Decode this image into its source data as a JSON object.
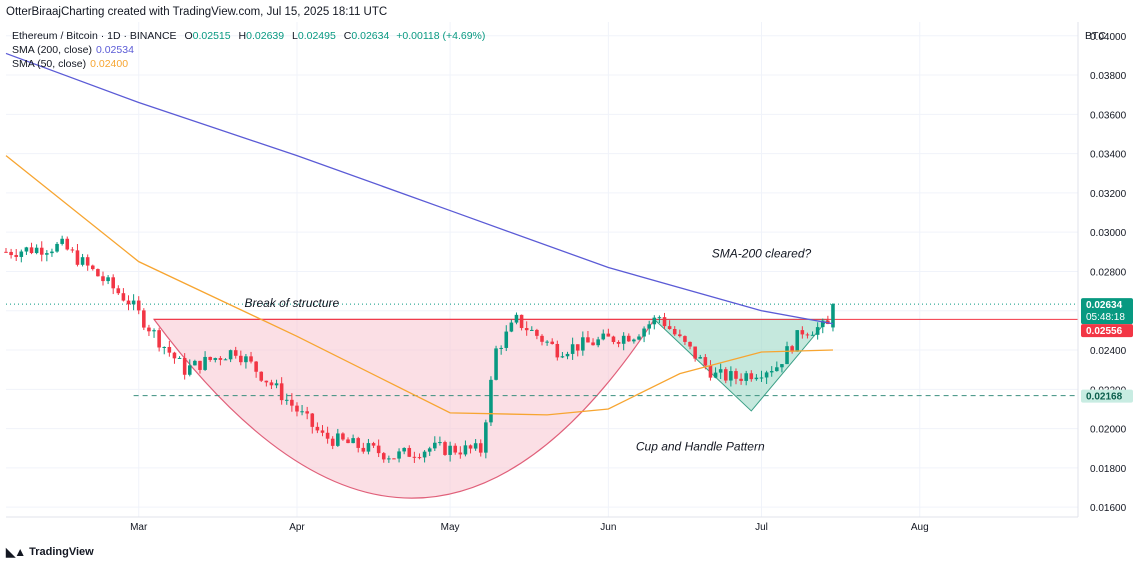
{
  "credit": "OtterBiraajCharting created with TradingView.com, Jul 15, 2025 18:11 UTC",
  "symbol": "Ethereum / Bitcoin · 1D · BINANCE",
  "ohlc": {
    "o_label": "O",
    "o": "0.02515",
    "h_label": "H",
    "h": "0.02639",
    "l_label": "L",
    "l": "0.02495",
    "c_label": "C",
    "c": "0.02634",
    "change": "+0.00118 (+4.69%)"
  },
  "indicators": [
    {
      "label": "SMA (200, close)",
      "value": "0.02534",
      "color": "#5b5bd6"
    },
    {
      "label": "SMA (50, close)",
      "value": "0.02400",
      "color": "#f7a531"
    }
  ],
  "unit": "BTC",
  "watermark": "TradingView",
  "colors": {
    "up": "#089981",
    "down": "#f23645",
    "sma200": "#5b5bd6",
    "sma50": "#f7a531",
    "resistance": "#f23645",
    "support": "#3a8f7e",
    "cup": "#f8c5cf",
    "handle": "#9fd8c6"
  },
  "chart_data": {
    "type": "candlestick",
    "yaxis": {
      "ticks": [
        "0.04000",
        "0.03800",
        "0.03600",
        "0.03400",
        "0.03200",
        "0.03000",
        "0.02800",
        "0.02600",
        "0.02400",
        "0.02200",
        "0.02000",
        "0.01800",
        "0.01600"
      ],
      "range": [
        0.0155,
        0.0407
      ]
    },
    "xaxis": {
      "ticks": [
        {
          "label": "Mar",
          "date": "2025-03-01"
        },
        {
          "label": "Apr",
          "date": "2025-04-01"
        },
        {
          "label": "May",
          "date": "2025-05-01"
        },
        {
          "label": "Jun",
          "date": "2025-06-01"
        },
        {
          "label": "Jul",
          "date": "2025-07-01"
        },
        {
          "label": "Aug",
          "date": "2025-08-01"
        }
      ],
      "range": [
        "2025-02-03",
        "2025-09-01"
      ]
    },
    "price_labels": [
      {
        "value": "0.02634",
        "countdown": "05:48:18",
        "kind": "last"
      },
      {
        "value": "0.02556",
        "kind": "resistance"
      },
      {
        "value": "0.02168",
        "kind": "support"
      }
    ],
    "levels": {
      "break_of_structure": 0.02556,
      "support": 0.02168,
      "last": 0.02634
    },
    "annotations": [
      {
        "text": "Break of structure",
        "date": "2025-03-31",
        "value": 0.0262
      },
      {
        "text": "SMA-200 cleared?",
        "date": "2025-07-01",
        "value": 0.0287
      },
      {
        "text": "Cup and Handle Pattern",
        "date": "2025-06-19",
        "value": 0.01888
      }
    ],
    "keypoints": [
      {
        "date": "2025-02-03",
        "value": 0.029
      },
      {
        "date": "2025-02-14",
        "value": 0.0293
      },
      {
        "date": "2025-02-27",
        "value": 0.0265
      },
      {
        "date": "2025-03-05",
        "value": 0.0245
      },
      {
        "date": "2025-03-10",
        "value": 0.023
      },
      {
        "date": "2025-03-20",
        "value": 0.024
      },
      {
        "date": "2025-03-28",
        "value": 0.022
      },
      {
        "date": "2025-04-06",
        "value": 0.0196
      },
      {
        "date": "2025-04-20",
        "value": 0.0186
      },
      {
        "date": "2025-04-27",
        "value": 0.019
      },
      {
        "date": "2025-05-07",
        "value": 0.0189
      },
      {
        "date": "2025-05-10",
        "value": 0.024
      },
      {
        "date": "2025-05-14",
        "value": 0.0255
      },
      {
        "date": "2025-05-22",
        "value": 0.024
      },
      {
        "date": "2025-05-31",
        "value": 0.0245
      },
      {
        "date": "2025-06-06",
        "value": 0.0248
      },
      {
        "date": "2025-06-11",
        "value": 0.0257
      },
      {
        "date": "2025-06-15",
        "value": 0.0245
      },
      {
        "date": "2025-06-22",
        "value": 0.0227
      },
      {
        "date": "2025-06-26",
        "value": 0.0226
      },
      {
        "date": "2025-07-04",
        "value": 0.0232
      },
      {
        "date": "2025-07-09",
        "value": 0.025
      },
      {
        "date": "2025-07-14",
        "value": 0.0252
      },
      {
        "date": "2025-07-15",
        "value": 0.02634
      }
    ],
    "sma200": [
      {
        "date": "2025-02-03",
        "value": 0.0391
      },
      {
        "date": "2025-03-01",
        "value": 0.0366
      },
      {
        "date": "2025-04-01",
        "value": 0.0339
      },
      {
        "date": "2025-05-01",
        "value": 0.0311
      },
      {
        "date": "2025-06-01",
        "value": 0.0282
      },
      {
        "date": "2025-07-01",
        "value": 0.026
      },
      {
        "date": "2025-07-15",
        "value": 0.02534
      }
    ],
    "sma50": [
      {
        "date": "2025-02-03",
        "value": 0.0339
      },
      {
        "date": "2025-03-01",
        "value": 0.0285
      },
      {
        "date": "2025-04-01",
        "value": 0.0247
      },
      {
        "date": "2025-05-01",
        "value": 0.0208
      },
      {
        "date": "2025-05-20",
        "value": 0.0207
      },
      {
        "date": "2025-06-01",
        "value": 0.021
      },
      {
        "date": "2025-06-15",
        "value": 0.0228
      },
      {
        "date": "2025-07-01",
        "value": 0.0239
      },
      {
        "date": "2025-07-15",
        "value": 0.024
      }
    ],
    "cup": {
      "left": {
        "date": "2025-03-04",
        "value": 0.02556
      },
      "bottom": {
        "date": "2025-04-25",
        "value": 0.01646
      },
      "right": {
        "date": "2025-06-10",
        "value": 0.02556
      }
    },
    "handle": [
      {
        "date": "2025-06-10",
        "value": 0.02556
      },
      {
        "date": "2025-07-14",
        "value": 0.02556
      },
      {
        "date": "2025-06-29",
        "value": 0.0209
      }
    ]
  }
}
